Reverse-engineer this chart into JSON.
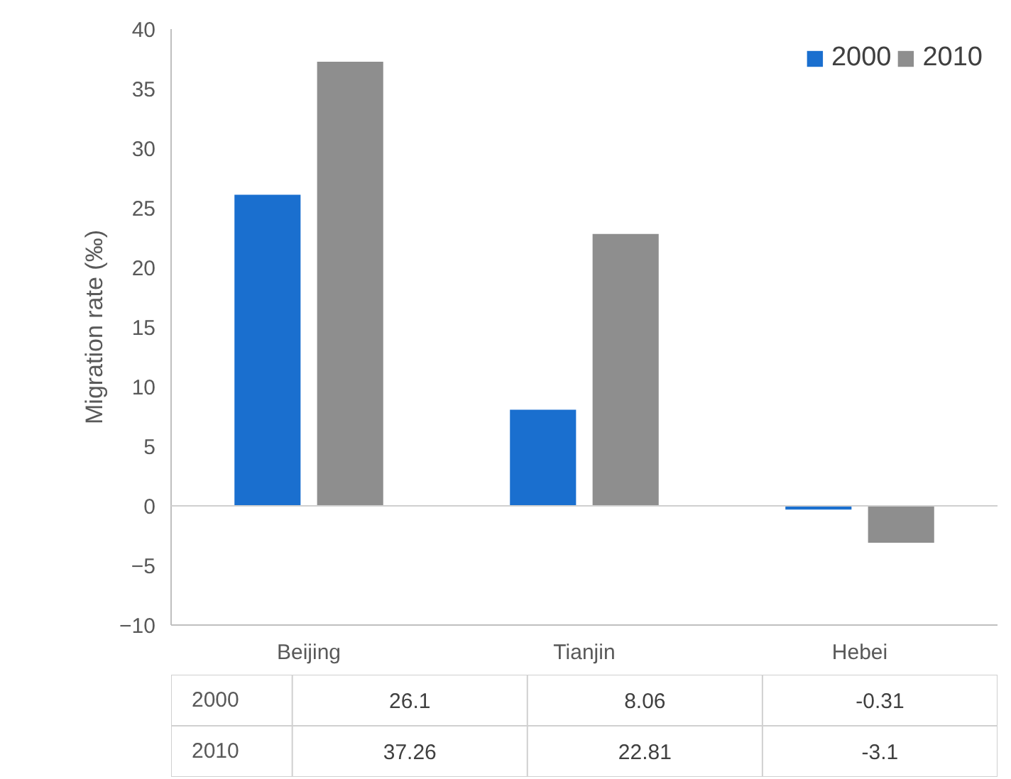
{
  "chart_data": {
    "type": "bar",
    "categories": [
      "Beijing",
      "Tianjin",
      "Hebei"
    ],
    "ylabel": "Migration rate (‰)",
    "ylim": [
      -10,
      40
    ],
    "yticks": [
      -10,
      -5,
      0,
      5,
      10,
      15,
      20,
      25,
      30,
      35,
      40
    ],
    "legend": "top right",
    "data_labels": true,
    "series": [
      {
        "name": "2000",
        "color": "#1a6fcf",
        "values": [
          26.1,
          8.06,
          -0.31
        ]
      },
      {
        "name": "2010",
        "color": "#8e8e8e",
        "values": [
          37.26,
          22.81,
          -3.1
        ]
      }
    ]
  }
}
